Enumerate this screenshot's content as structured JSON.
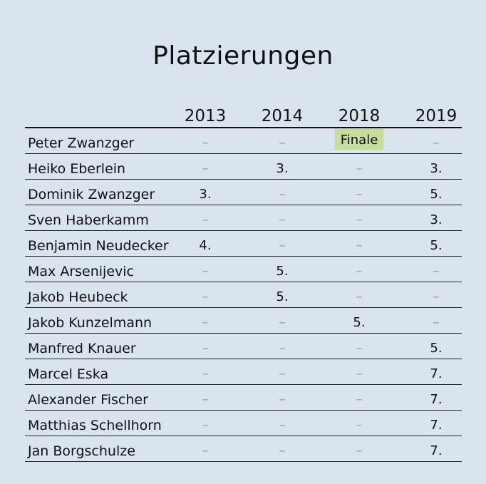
{
  "title": "Platzierungen",
  "years": [
    "2013",
    "2014",
    "2018",
    "2019"
  ],
  "highlight_color": "#c6dd9c",
  "rows": [
    {
      "name": "Peter Zwanzger",
      "values": [
        "–",
        "–",
        "Finale",
        "–"
      ]
    },
    {
      "name": "Heiko Eberlein",
      "values": [
        "–",
        "3.",
        "–",
        "3."
      ]
    },
    {
      "name": "Dominik Zwanzger",
      "values": [
        "3.",
        "–",
        "–",
        "5."
      ]
    },
    {
      "name": "Sven Haberkamm",
      "values": [
        "–",
        "–",
        "–",
        "3."
      ]
    },
    {
      "name": "Benjamin Neudecker",
      "values": [
        "4.",
        "–",
        "–",
        "5."
      ]
    },
    {
      "name": "Max Arsenijevic",
      "values": [
        "–",
        "5.",
        "–",
        "–"
      ]
    },
    {
      "name": "Jakob Heubeck",
      "values": [
        "–",
        "5.",
        "–",
        "–"
      ]
    },
    {
      "name": "Jakob Kunzelmann",
      "values": [
        "–",
        "–",
        "5.",
        "–"
      ]
    },
    {
      "name": "Manfred Knauer",
      "values": [
        "–",
        "–",
        "–",
        "5."
      ]
    },
    {
      "name": "Marcel Eska",
      "values": [
        "–",
        "–",
        "–",
        "7."
      ]
    },
    {
      "name": "Alexander Fischer",
      "values": [
        "–",
        "–",
        "–",
        "7."
      ]
    },
    {
      "name": "Matthias Schellhorn",
      "values": [
        "–",
        "–",
        "–",
        "7."
      ]
    },
    {
      "name": "Jan Borgschulze",
      "values": [
        "–",
        "–",
        "–",
        "7."
      ]
    }
  ]
}
